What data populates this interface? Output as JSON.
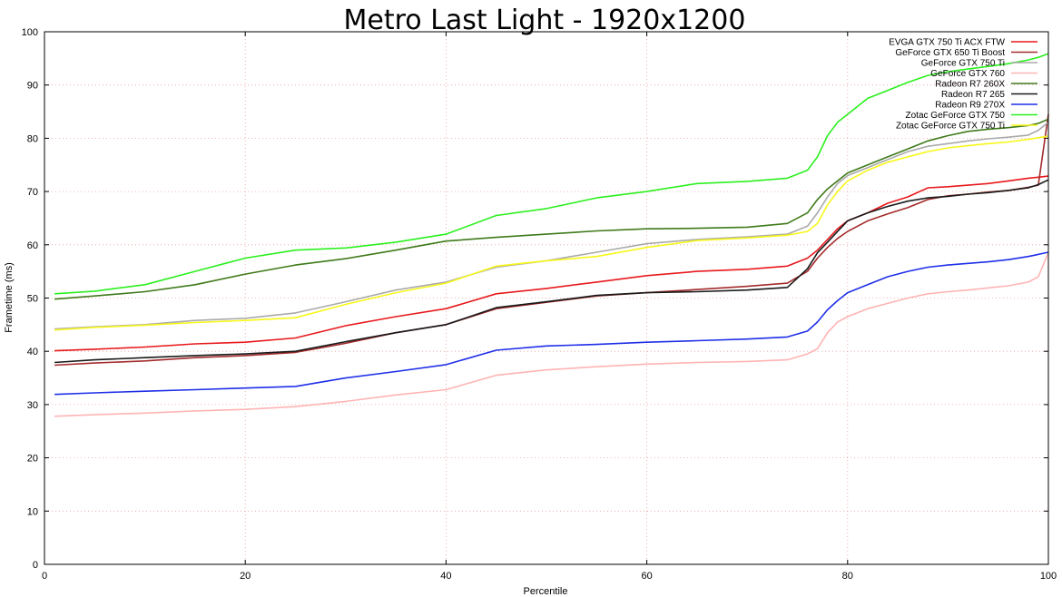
{
  "chart_data": {
    "type": "line",
    "title": "Metro Last Light - 1920x1200",
    "xlabel": "Percentile",
    "ylabel": "Frametime (ms)",
    "xlim": [
      0,
      100
    ],
    "ylim": [
      0,
      100
    ],
    "xticks": [
      0,
      20,
      40,
      60,
      80,
      100
    ],
    "yticks": [
      0,
      10,
      20,
      30,
      40,
      50,
      60,
      70,
      80,
      90,
      100
    ],
    "grid": true,
    "legend_position": "top-right",
    "x": [
      1,
      5,
      10,
      15,
      20,
      25,
      30,
      35,
      40,
      45,
      50,
      55,
      60,
      65,
      70,
      74,
      76,
      77,
      78,
      79,
      80,
      82,
      84,
      86,
      88,
      90,
      92,
      94,
      96,
      98,
      99,
      100
    ],
    "series": [
      {
        "name": "EVGA GTX 750 Ti ACX FTW",
        "color": "#e8191c",
        "values": [
          40.1,
          40.4,
          40.8,
          41.4,
          41.7,
          42.5,
          44.8,
          46.5,
          48.0,
          50.8,
          51.8,
          53.0,
          54.2,
          55.0,
          55.4,
          56.0,
          57.5,
          59.0,
          61.0,
          63.0,
          64.5,
          66.0,
          67.8,
          69.0,
          70.7,
          70.9,
          71.2,
          71.5,
          72.0,
          72.5,
          72.7,
          72.9
        ]
      },
      {
        "name": "GeForce GTX 650 Ti Boost",
        "color": "#a32b2b",
        "values": [
          37.4,
          37.8,
          38.2,
          38.8,
          39.2,
          39.8,
          41.5,
          43.5,
          45.0,
          48.0,
          49.2,
          50.4,
          51.0,
          51.6,
          52.2,
          52.8,
          55.0,
          57.5,
          59.5,
          61.2,
          62.5,
          64.5,
          65.8,
          67.0,
          68.5,
          69.2,
          69.5,
          69.9,
          70.2,
          70.8,
          71.2,
          84.5
        ]
      },
      {
        "name": "GeForce GTX 750 Ti",
        "color": "#aaaaaa",
        "values": [
          44.2,
          44.6,
          45.0,
          45.8,
          46.2,
          47.2,
          49.3,
          51.5,
          53.0,
          55.8,
          57.0,
          58.6,
          60.2,
          61.0,
          61.5,
          62.0,
          63.5,
          66.0,
          69.0,
          71.5,
          73.0,
          74.5,
          76.0,
          77.5,
          78.5,
          79.0,
          79.5,
          79.9,
          80.2,
          80.6,
          81.5,
          83.0
        ]
      },
      {
        "name": "GeForce GTX 760",
        "color": "#ffb4b4",
        "values": [
          27.8,
          28.1,
          28.4,
          28.8,
          29.1,
          29.6,
          30.6,
          31.8,
          32.8,
          35.5,
          36.5,
          37.1,
          37.6,
          37.9,
          38.1,
          38.4,
          39.5,
          40.5,
          43.5,
          45.5,
          46.5,
          48.0,
          49.0,
          50.0,
          50.8,
          51.2,
          51.5,
          51.9,
          52.3,
          53.0,
          54.0,
          58.5
        ]
      },
      {
        "name": "Radeon R7 260X",
        "color": "#3f7a1a",
        "values": [
          49.8,
          50.4,
          51.2,
          52.5,
          54.5,
          56.2,
          57.4,
          59.0,
          60.7,
          61.4,
          62.0,
          62.6,
          63.0,
          63.1,
          63.3,
          64.0,
          66.0,
          68.5,
          70.5,
          72.0,
          73.5,
          75.0,
          76.5,
          78.0,
          79.5,
          80.5,
          81.3,
          81.7,
          82.0,
          82.4,
          82.8,
          83.6
        ]
      },
      {
        "name": "Radeon R7 265",
        "color": "#1a1a1a",
        "values": [
          37.9,
          38.4,
          38.8,
          39.2,
          39.5,
          40.0,
          41.8,
          43.5,
          45.0,
          48.2,
          49.3,
          50.5,
          51.0,
          51.2,
          51.5,
          52.0,
          55.5,
          58.5,
          60.5,
          62.5,
          64.5,
          66.0,
          67.2,
          68.2,
          68.8,
          69.1,
          69.5,
          69.8,
          70.2,
          70.7,
          71.3,
          72.2
        ]
      },
      {
        "name": "Radeon R9 270X",
        "color": "#1f2fe8",
        "values": [
          31.9,
          32.2,
          32.5,
          32.8,
          33.1,
          33.4,
          35.0,
          36.2,
          37.5,
          40.2,
          41.0,
          41.3,
          41.7,
          42.0,
          42.3,
          42.7,
          43.8,
          45.5,
          47.8,
          49.5,
          51.0,
          52.5,
          54.0,
          55.0,
          55.8,
          56.2,
          56.5,
          56.8,
          57.2,
          57.8,
          58.2,
          58.6
        ]
      },
      {
        "name": "Zotac GeForce GTX 750",
        "color": "#2bf01e",
        "values": [
          50.8,
          51.3,
          52.5,
          55.0,
          57.5,
          59.0,
          59.4,
          60.5,
          62.0,
          65.5,
          66.8,
          68.8,
          70.0,
          71.5,
          71.9,
          72.5,
          74.0,
          76.5,
          80.5,
          83.0,
          84.5,
          87.5,
          89.0,
          90.5,
          91.8,
          92.5,
          93.0,
          93.5,
          94.0,
          94.7,
          95.2,
          95.9
        ]
      },
      {
        "name": "Zotac GeForce GTX 750 Ti",
        "color": "#f7f71a",
        "values": [
          44.0,
          44.5,
          44.9,
          45.4,
          45.8,
          46.3,
          48.8,
          51.0,
          52.8,
          56.0,
          57.0,
          57.8,
          59.5,
          60.8,
          61.3,
          61.8,
          62.5,
          64.0,
          67.5,
          70.0,
          72.0,
          74.0,
          75.5,
          76.5,
          77.5,
          78.2,
          78.6,
          79.0,
          79.3,
          79.8,
          80.1,
          80.4
        ]
      }
    ]
  }
}
